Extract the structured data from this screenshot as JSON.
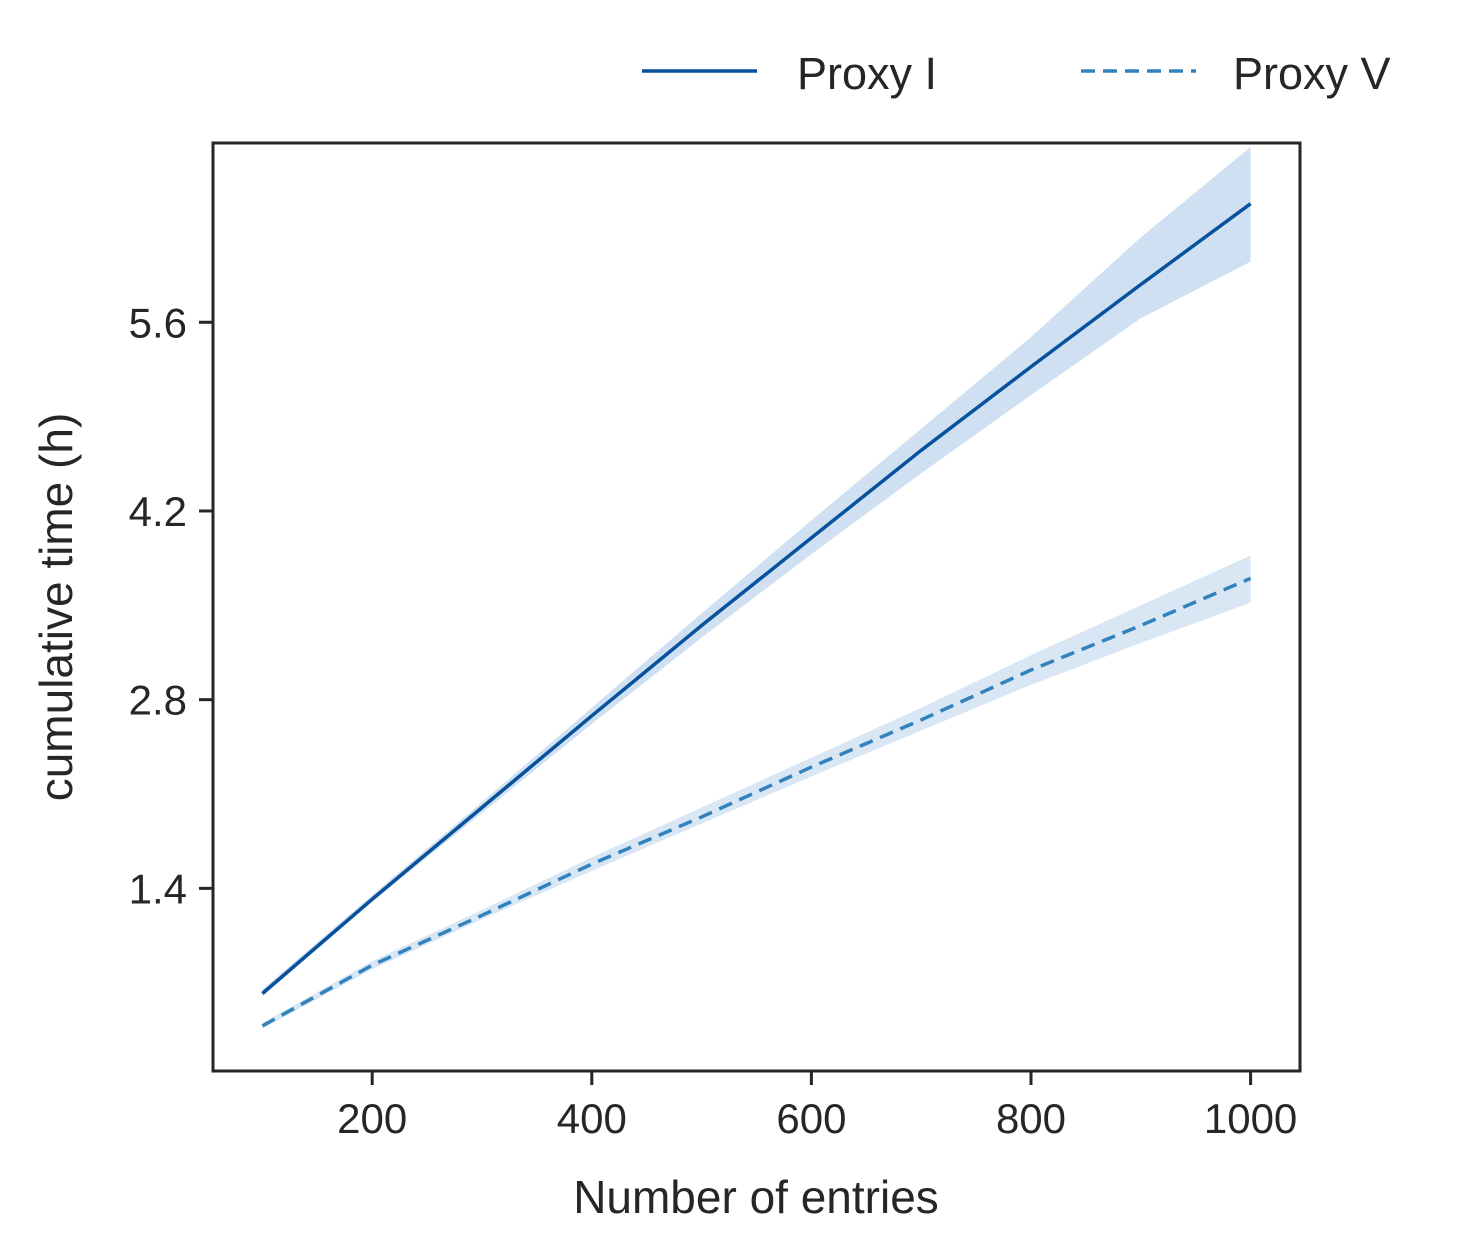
{
  "chart_data": {
    "type": "line",
    "xlabel": "Number of entries",
    "ylabel": "cumulative time (h)",
    "xlim": [
      55,
      1045
    ],
    "ylim": [
      0.045,
      6.93
    ],
    "x_ticks": [
      200,
      400,
      600,
      800,
      1000
    ],
    "x_tick_labels": [
      "200",
      "400",
      "600",
      "800",
      "1000"
    ],
    "y_ticks": [
      1.4,
      2.8,
      4.2,
      5.6
    ],
    "y_tick_labels": [
      "1.4",
      "2.8",
      "4.2",
      "5.6"
    ],
    "grid": false,
    "legend_position": "top-right, above plot",
    "series": [
      {
        "name": "Proxy I",
        "style": "solid",
        "color": "#08519c",
        "band_color": "#c6dbef",
        "x": [
          100,
          200,
          300,
          400,
          500,
          600,
          700,
          800,
          900,
          1000
        ],
        "y": [
          0.62,
          1.32,
          2.0,
          2.68,
          3.35,
          4.0,
          4.65,
          5.27,
          5.88,
          6.48
        ],
        "y_lower": [
          0.6,
          1.3,
          1.96,
          2.62,
          3.26,
          3.88,
          4.48,
          5.06,
          5.63,
          6.05
        ],
        "y_upper": [
          0.65,
          1.35,
          2.04,
          2.74,
          3.44,
          4.13,
          4.81,
          5.49,
          6.23,
          6.9
        ]
      },
      {
        "name": "Proxy V",
        "style": "dashed",
        "color": "#3182bd",
        "band_color": "#d2e3f3",
        "x": [
          100,
          200,
          300,
          400,
          500,
          600,
          700,
          800,
          900,
          1000
        ],
        "y": [
          0.38,
          0.83,
          1.2,
          1.58,
          1.93,
          2.3,
          2.65,
          3.02,
          3.35,
          3.7
        ],
        "y_lower": [
          0.36,
          0.8,
          1.17,
          1.53,
          1.88,
          2.23,
          2.57,
          2.91,
          3.22,
          3.52
        ],
        "y_upper": [
          0.4,
          0.86,
          1.24,
          1.63,
          2.0,
          2.37,
          2.74,
          3.13,
          3.5,
          3.87
        ]
      }
    ]
  }
}
